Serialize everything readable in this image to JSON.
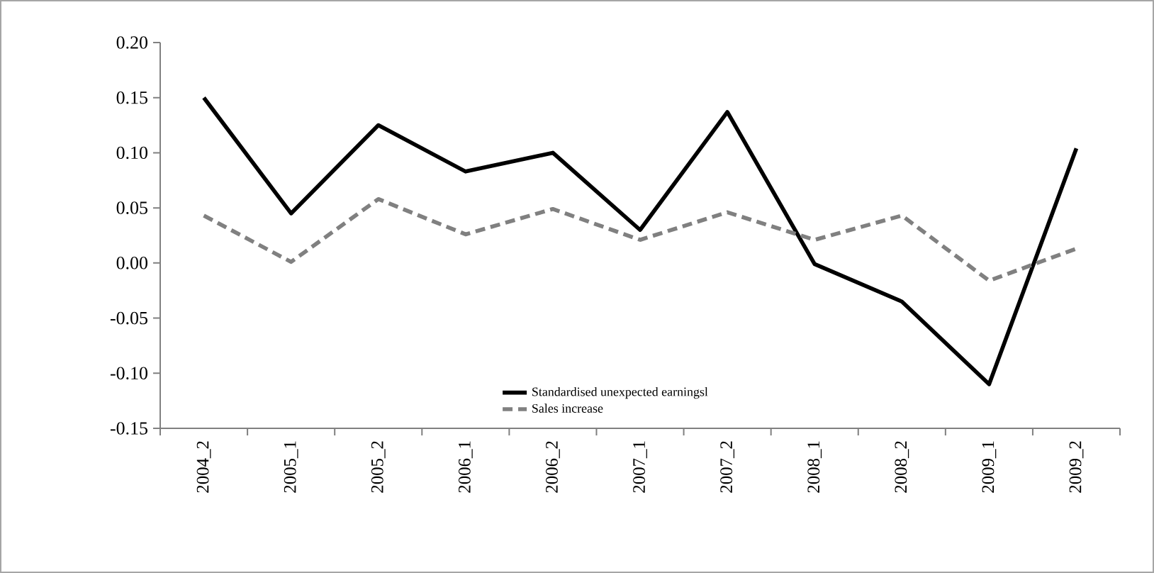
{
  "chart_data": {
    "type": "line",
    "categories": [
      "2004_2",
      "2005_1",
      "2005_2",
      "2006_1",
      "2006_2",
      "2007_1",
      "2007_2",
      "2008_1",
      "2008_2",
      "2009_1",
      "2009_2"
    ],
    "series": [
      {
        "name": "Standardised unexpected earningsl",
        "color": "#000000",
        "line_style": "solid",
        "values": [
          0.15,
          0.045,
          0.125,
          0.083,
          0.1,
          0.03,
          0.137,
          -0.001,
          -0.035,
          -0.11,
          0.104
        ]
      },
      {
        "name": "Sales increase",
        "color": "#808080",
        "line_style": "dashed",
        "values": [
          0.043,
          0.001,
          0.058,
          0.026,
          0.049,
          0.021,
          0.046,
          0.021,
          0.043,
          -0.016,
          0.013
        ]
      }
    ],
    "ylim": [
      -0.15,
      0.2
    ],
    "yticks": [
      {
        "value": -0.15,
        "label": "-0.15"
      },
      {
        "value": -0.1,
        "label": "-0.10"
      },
      {
        "value": -0.05,
        "label": "-0.05"
      },
      {
        "value": 0,
        "label": "0.00"
      },
      {
        "value": 0.05,
        "label": "0.05"
      },
      {
        "value": 0.1,
        "label": "0.10"
      },
      {
        "value": 0.15,
        "label": "0.15"
      },
      {
        "value": 0.2,
        "label": "0.20"
      }
    ],
    "grid": false,
    "legend": "bottom",
    "marker": "none"
  }
}
